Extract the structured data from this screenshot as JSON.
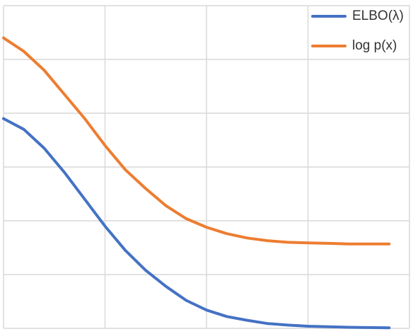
{
  "chart_data": {
    "type": "line",
    "title": "",
    "xlabel": "",
    "ylabel": "",
    "x": [
      0,
      1,
      2,
      3,
      4,
      5,
      6,
      7,
      8,
      9,
      10,
      11,
      12,
      13,
      14,
      15,
      16,
      17,
      18,
      19
    ],
    "xlim": [
      0,
      20
    ],
    "ylim": [
      0,
      6
    ],
    "grid": true,
    "legend_position": "top-right",
    "series": [
      {
        "name": "ELBO(λ)",
        "color": "#4472C4",
        "values": [
          3.9,
          3.7,
          3.35,
          2.9,
          2.4,
          1.9,
          1.45,
          1.08,
          0.78,
          0.52,
          0.34,
          0.22,
          0.15,
          0.09,
          0.06,
          0.04,
          0.03,
          0.02,
          0.015,
          0.01
        ]
      },
      {
        "name": "log p(x)",
        "color": "#ED7D31",
        "values": [
          5.4,
          5.15,
          4.8,
          4.35,
          3.9,
          3.4,
          2.95,
          2.6,
          2.28,
          2.04,
          1.88,
          1.76,
          1.68,
          1.63,
          1.6,
          1.59,
          1.58,
          1.57,
          1.57,
          1.57
        ]
      }
    ]
  }
}
